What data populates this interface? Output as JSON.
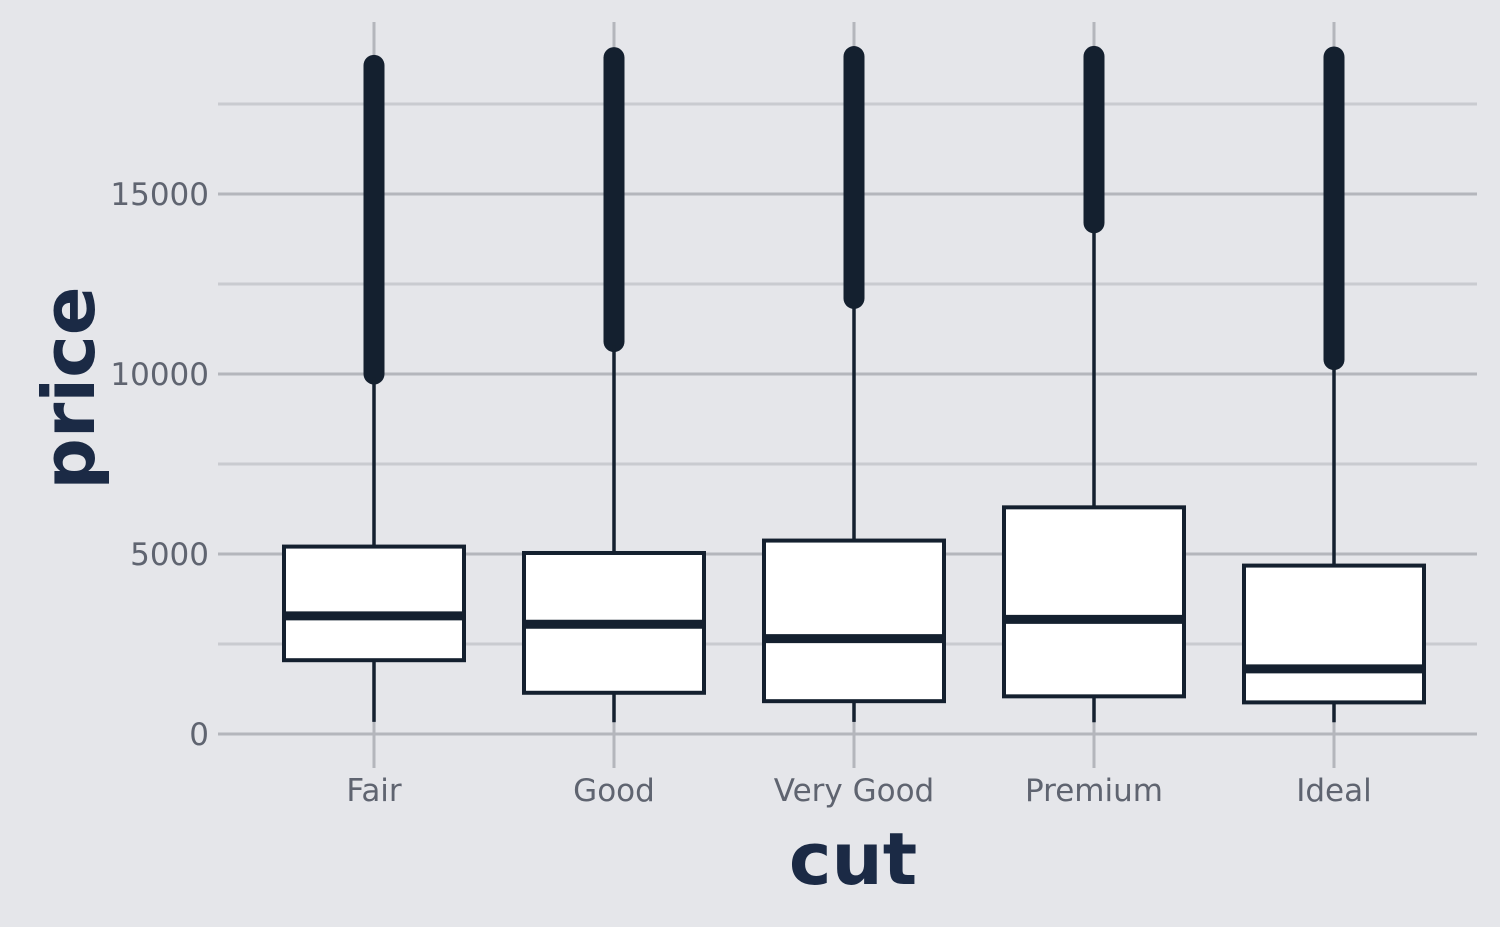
{
  "chart_data": {
    "type": "boxplot",
    "xlabel": "cut",
    "ylabel": "price",
    "ylim": [
      0,
      19000
    ],
    "y_ticks": [
      "0",
      "5000",
      "10000",
      "15000"
    ],
    "categories": [
      "Fair",
      "Good",
      "Very Good",
      "Premium",
      "Ideal"
    ],
    "boxes": [
      {
        "category": "Fair",
        "q1": 2050,
        "median": 3282,
        "q3": 5206,
        "whisker_low": 337,
        "whisker_high": 9900,
        "outliers_from": 10000,
        "outliers_to": 18574
      },
      {
        "category": "Good",
        "q1": 1145,
        "median": 3050,
        "q3": 5028,
        "whisker_low": 327,
        "whisker_high": 10800,
        "outliers_from": 10900,
        "outliers_to": 18788
      },
      {
        "category": "Very Good",
        "q1": 912,
        "median": 2648,
        "q3": 5373,
        "whisker_low": 336,
        "whisker_high": 11900,
        "outliers_from": 12100,
        "outliers_to": 18818
      },
      {
        "category": "Premium",
        "q1": 1046,
        "median": 3185,
        "q3": 6296,
        "whisker_low": 326,
        "whisker_high": 14000,
        "outliers_from": 14200,
        "outliers_to": 18823
      },
      {
        "category": "Ideal",
        "q1": 878,
        "median": 1810,
        "q3": 4678,
        "whisker_low": 326,
        "whisker_high": 10200,
        "outliers_from": 10400,
        "outliers_to": 18806
      }
    ],
    "grid": true,
    "legend": "none",
    "colors": {
      "background": "#e5e6ea",
      "grid_major": "#b4b6bc",
      "grid_minor": "#c9cbd0",
      "ink": "#14202f",
      "box_fill": "#ffffff",
      "tick_text": "#5f6470",
      "title_text": "#1b2a45"
    }
  }
}
